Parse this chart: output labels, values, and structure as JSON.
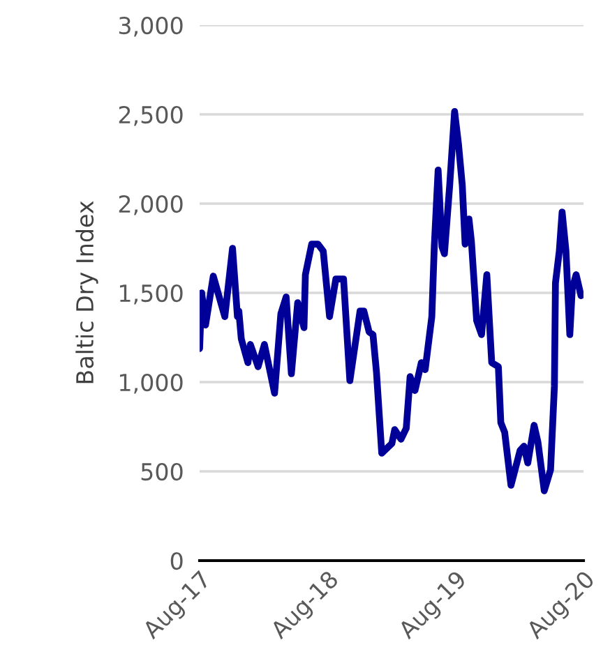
{
  "chart_data": {
    "type": "line",
    "ylabel": "Baltic Dry Index",
    "x": [
      "2017-08-01",
      "2017-08-07",
      "2017-08-18",
      "2017-09-09",
      "2017-10-12",
      "2017-11-03",
      "2017-11-17",
      "2017-11-21",
      "2017-11-28",
      "2017-12-17",
      "2017-12-24",
      "2018-01-15",
      "2018-02-02",
      "2018-03-03",
      "2018-03-21",
      "2018-04-05",
      "2018-04-20",
      "2018-05-08",
      "2018-05-26",
      "2018-05-30",
      "2018-06-17",
      "2018-07-05",
      "2018-07-20",
      "2018-08-07",
      "2018-08-25",
      "2018-09-16",
      "2018-10-04",
      "2018-11-02",
      "2018-11-13",
      "2018-11-28",
      "2018-12-09",
      "2018-12-19",
      "2019-01-03",
      "2019-02-01",
      "2019-02-09",
      "2019-02-27",
      "2019-03-14",
      "2019-03-25",
      "2019-04-08",
      "2019-04-26",
      "2019-05-07",
      "2019-05-26",
      "2019-06-02",
      "2019-06-13",
      "2019-06-24",
      "2019-07-01",
      "2019-07-16",
      "2019-07-30",
      "2019-08-10",
      "2019-08-21",
      "2019-08-29",
      "2019-09-09",
      "2019-09-16",
      "2019-10-01",
      "2019-10-15",
      "2019-10-30",
      "2019-11-13",
      "2019-12-02",
      "2019-12-09",
      "2019-12-20",
      "2020-01-07",
      "2020-02-02",
      "2020-02-13",
      "2020-02-24",
      "2020-03-13",
      "2020-03-24",
      "2020-04-11",
      "2020-04-29",
      "2020-05-10",
      "2020-05-13",
      "2020-05-24",
      "2020-06-01",
      "2020-06-12",
      "2020-06-23",
      "2020-06-30",
      "2020-07-11",
      "2020-07-25"
    ],
    "series": [
      {
        "color": "#000099",
        "values": [
          1188,
          1500,
          1320,
          1594,
          1367,
          1750,
          1367,
          1398,
          1242,
          1109,
          1211,
          1086,
          1211,
          938,
          1383,
          1477,
          1047,
          1445,
          1305,
          1602,
          1773,
          1773,
          1734,
          1367,
          1578,
          1578,
          1008,
          1398,
          1398,
          1281,
          1266,
          1055,
          602,
          656,
          734,
          680,
          742,
          1031,
          953,
          1109,
          1070,
          1367,
          1758,
          2188,
          1758,
          1719,
          2102,
          2516,
          2336,
          2102,
          1773,
          1914,
          1789,
          1344,
          1266,
          1602,
          1109,
          1086,
          773,
          719,
          422,
          617,
          641,
          547,
          758,
          664,
          391,
          508,
          977,
          1555,
          1734,
          1953,
          1734,
          1266,
          1523,
          1602,
          1484
        ]
      }
    ],
    "xlim": [
      "2017-08-01",
      "2020-08-01"
    ],
    "xticks": [
      {
        "value": "2017-08-01",
        "label": "Aug-17"
      },
      {
        "value": "2018-08-01",
        "label": "Aug-18"
      },
      {
        "value": "2019-08-01",
        "label": "Aug-19"
      },
      {
        "value": "2020-08-01",
        "label": "Aug-20"
      }
    ],
    "ylim": [
      0,
      3000
    ],
    "yticks": [
      {
        "value": 0,
        "label": "0"
      },
      {
        "value": 500,
        "label": "500"
      },
      {
        "value": 1000,
        "label": "1,000"
      },
      {
        "value": 1500,
        "label": "1,500"
      },
      {
        "value": 2000,
        "label": "2,000"
      },
      {
        "value": 2500,
        "label": "2,500"
      },
      {
        "value": 3000,
        "label": "3,000"
      }
    ],
    "grid": "y",
    "marker": "none",
    "line_style": "solid"
  }
}
